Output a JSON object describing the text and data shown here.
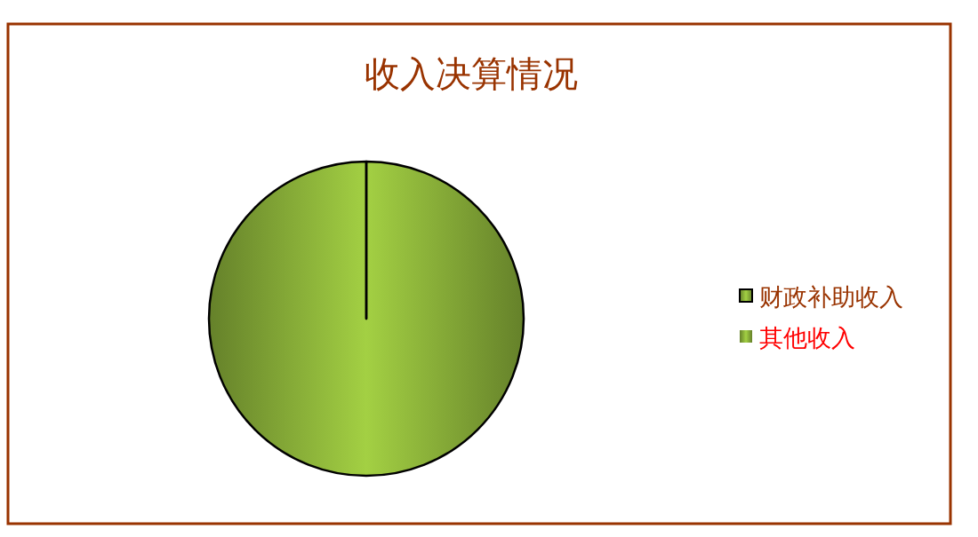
{
  "chart_data": {
    "type": "pie",
    "title": "收入决算情况",
    "categories": [
      "财政补助收入",
      "其他收入"
    ],
    "values": [
      100,
      0
    ],
    "colors": [
      "#a3d043",
      "#a3d043"
    ],
    "legend": "right"
  }
}
